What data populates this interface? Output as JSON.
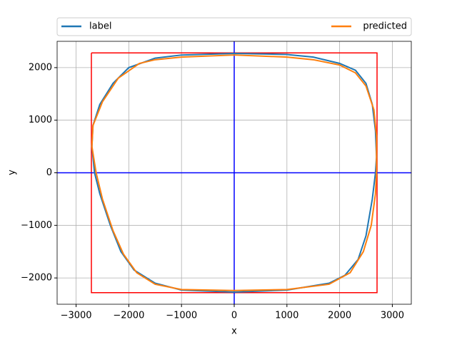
{
  "chart_data": {
    "type": "line",
    "xlabel": "x",
    "ylabel": "y",
    "xlim": [
      -3360,
      3360
    ],
    "ylim": [
      -2500,
      2500
    ],
    "xticks": [
      {
        "value": -3000,
        "label": "−3000"
      },
      {
        "value": -2000,
        "label": "−2000"
      },
      {
        "value": -1000,
        "label": "−1000"
      },
      0,
      1000,
      2000,
      3000
    ],
    "yticks": [
      {
        "value": -2000,
        "label": "−2000"
      },
      {
        "value": -1000,
        "label": "−1000"
      },
      0,
      1000,
      2000
    ],
    "grid": true,
    "legend": "top-expand",
    "series": [
      {
        "name": "label",
        "color": "#1f77b4",
        "x": [
          0,
          1000,
          1500,
          2000,
          2300,
          2500,
          2620,
          2680,
          2700,
          2680,
          2620,
          2500,
          2350,
          2100,
          1800,
          1000,
          0,
          -1000,
          -1500,
          -1900,
          -2150,
          -2350,
          -2550,
          -2650,
          -2700,
          -2680,
          -2550,
          -2300,
          -2000,
          -1500,
          -1000,
          0
        ],
        "y": [
          2270,
          2250,
          2200,
          2080,
          1950,
          1700,
          1300,
          800,
          300,
          0,
          -500,
          -1200,
          -1650,
          -1950,
          -2100,
          -2230,
          -2270,
          -2230,
          -2100,
          -1850,
          -1500,
          -1000,
          -400,
          0,
          500,
          900,
          1300,
          1700,
          2000,
          2180,
          2240,
          2270
        ]
      },
      {
        "name": "predicted",
        "color": "#ff7f0e",
        "x": [
          0,
          1000,
          1500,
          2000,
          2300,
          2500,
          2650,
          2700,
          2700,
          2680,
          2600,
          2450,
          2200,
          1800,
          1000,
          0,
          -1000,
          -1500,
          -1850,
          -2100,
          -2300,
          -2500,
          -2620,
          -2700,
          -2680,
          -2500,
          -2200,
          -1800,
          -1500,
          -1000,
          0
        ],
        "y": [
          2240,
          2200,
          2150,
          2050,
          1900,
          1650,
          1200,
          700,
          0,
          -400,
          -1000,
          -1500,
          -1900,
          -2120,
          -2220,
          -2240,
          -2220,
          -2120,
          -1900,
          -1550,
          -1100,
          -500,
          0,
          500,
          900,
          1350,
          1800,
          2080,
          2150,
          2200,
          2240
        ]
      }
    ],
    "shapes": [
      {
        "color": "#ff0000",
        "x": [
          -2710,
          2710,
          2710,
          -2710,
          -2710
        ],
        "y": [
          2280,
          2280,
          -2280,
          -2280,
          2280
        ]
      }
    ],
    "hlines": [
      {
        "value": 0,
        "color": "#0000ff"
      }
    ],
    "vlines": [
      {
        "value": 0,
        "color": "#0000ff"
      }
    ]
  }
}
